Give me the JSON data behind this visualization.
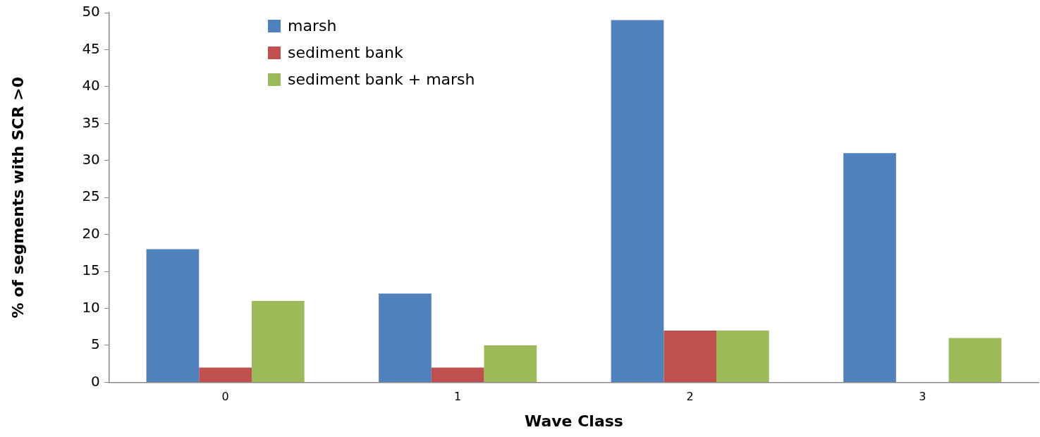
{
  "chart_data": {
    "type": "bar",
    "xlabel": "Wave Class",
    "ylabel": "% of segments with SCR >0",
    "categories": [
      "0",
      "1",
      "2",
      "3"
    ],
    "series": [
      {
        "name": "marsh",
        "color": "#4f81bd",
        "values": [
          18,
          12,
          49,
          31
        ]
      },
      {
        "name": "sediment bank",
        "color": "#c0504d",
        "values": [
          2,
          2,
          7,
          0
        ]
      },
      {
        "name": "sediment bank + marsh",
        "color": "#9bbb59",
        "values": [
          11,
          5,
          7,
          6
        ]
      }
    ],
    "ylim": [
      0,
      50
    ],
    "yticks": [
      0,
      5,
      10,
      15,
      20,
      25,
      30,
      35,
      40,
      45,
      50
    ],
    "grid": false,
    "legend": "top left"
  }
}
